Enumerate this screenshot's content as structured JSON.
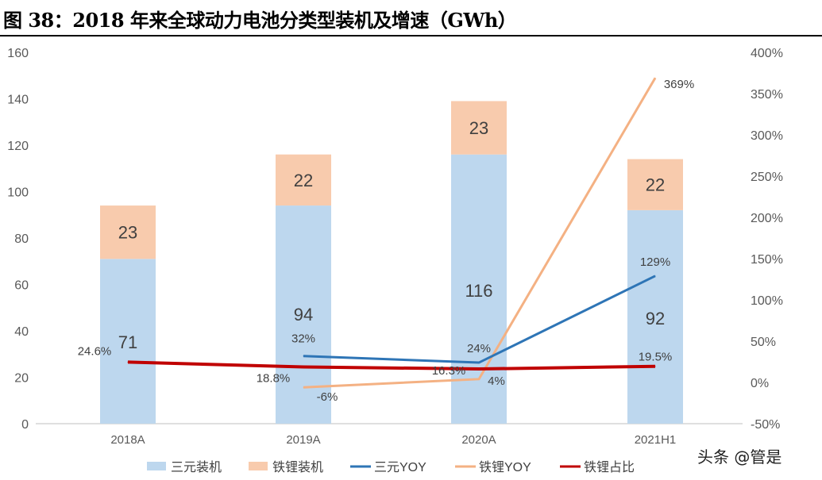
{
  "title": "图 38：2018 年来全球动力电池分类型装机及增速（GWh）",
  "watermark": "头条 @管是",
  "chart_data": {
    "type": "bar",
    "title": "图 38：2018 年来全球动力电池分类型装机及增速（GWh）",
    "categories": [
      "2018A",
      "2019A",
      "2020A",
      "2021H1"
    ],
    "left_axis": {
      "min": 0,
      "max": 160,
      "step": 20,
      "ticks": [
        "0",
        "20",
        "40",
        "60",
        "80",
        "100",
        "120",
        "140",
        "160"
      ]
    },
    "right_axis": {
      "min": -50,
      "max": 400,
      "step": 50,
      "ticks": [
        "-50%",
        "0%",
        "50%",
        "100%",
        "150%",
        "200%",
        "250%",
        "300%",
        "350%",
        "400%"
      ]
    },
    "grid": false,
    "legend_placement": "bottom",
    "bars_stacked": [
      {
        "name": "三元装机",
        "color": "#BDD7EE",
        "values": [
          71,
          94,
          116,
          92
        ],
        "labels": [
          "71",
          "94",
          "116",
          "92"
        ]
      },
      {
        "name": "铁锂装机",
        "color": "#F8CBAD",
        "values": [
          23,
          22,
          23,
          22
        ],
        "labels": [
          "23",
          "22",
          "23",
          "22"
        ]
      }
    ],
    "lines": [
      {
        "name": "三元YOY",
        "color": "#2E75B6",
        "axis": "right",
        "values": [
          null,
          32,
          24,
          129
        ],
        "labels": [
          "",
          "32%",
          "24%",
          "129%"
        ]
      },
      {
        "name": "铁锂YOY",
        "color": "#F4B183",
        "axis": "right",
        "values": [
          null,
          -6,
          4,
          369
        ],
        "labels": [
          "",
          "-6%",
          "4%",
          "369%"
        ]
      },
      {
        "name": "铁锂占比",
        "color": "#C00000",
        "axis": "right",
        "values": [
          24.6,
          18.8,
          16.3,
          19.5
        ],
        "labels": [
          "24.6%",
          "18.8%",
          "16.3%",
          "19.5%"
        ]
      }
    ]
  }
}
